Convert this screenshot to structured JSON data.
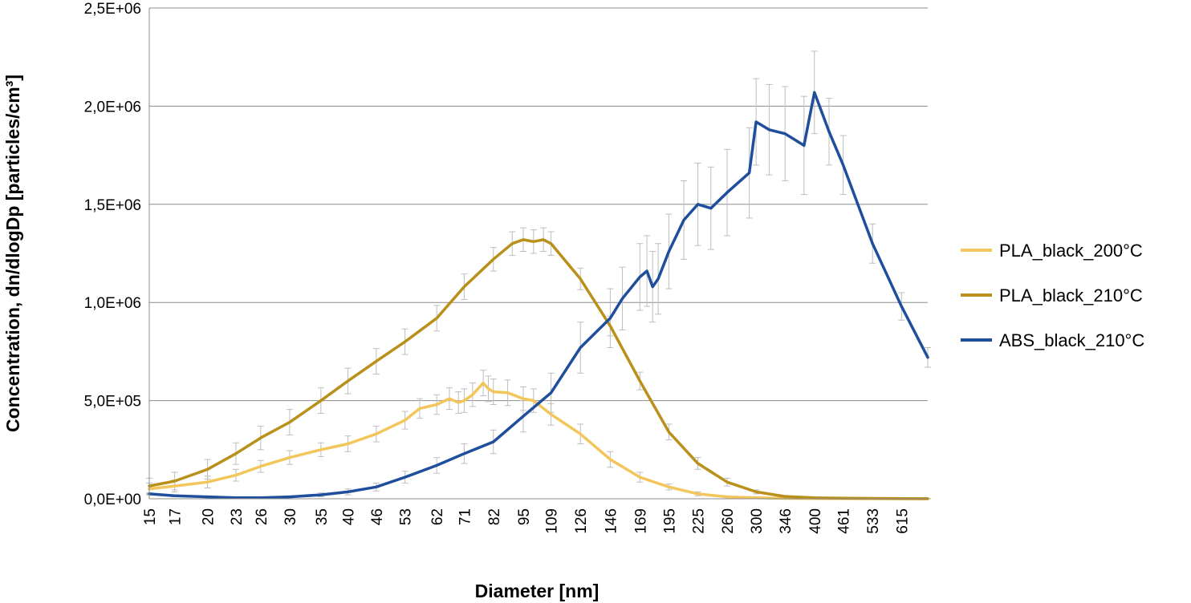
{
  "chart_data": {
    "type": "line",
    "title": "",
    "xlabel": "Diameter [nm]",
    "ylabel": "Concentration, dn/dlogDp [particles/cm³]",
    "ylim": [
      0,
      2500000
    ],
    "yticks": [
      0,
      500000,
      1000000,
      1500000,
      2000000,
      2500000
    ],
    "ytick_labels": [
      "0,0E+00",
      "5,0E+05",
      "1,0E+06",
      "1,5E+06",
      "2,0E+06",
      "2,5E+06"
    ],
    "xlim_log": [
      15,
      700
    ],
    "xticks": [
      15,
      17,
      20,
      23,
      26,
      30,
      35,
      40,
      46,
      53,
      62,
      71,
      82,
      95,
      109,
      126,
      146,
      169,
      195,
      225,
      260,
      300,
      346,
      400,
      461,
      533,
      615
    ],
    "xtick_labels": [
      "15",
      "17",
      "20",
      "23",
      "26",
      "30",
      "35",
      "40",
      "46",
      "53",
      "62",
      "71",
      "82",
      "95",
      "109",
      "126",
      "146",
      "169",
      "195",
      "225",
      "260",
      "300",
      "346",
      "400",
      "461",
      "533",
      "615"
    ],
    "grid": true,
    "legend_position": "right",
    "error_bars": true,
    "series": [
      {
        "name": "PLA_black_200°C",
        "color": "#F2C65A",
        "x": [
          15,
          17,
          20,
          23,
          26,
          30,
          35,
          40,
          46,
          53,
          57,
          62,
          66,
          69,
          71,
          74,
          78,
          80,
          82,
          88,
          95,
          100,
          109,
          126,
          146,
          169,
          195,
          225,
          260,
          300,
          346,
          400,
          461,
          533,
          615,
          700
        ],
        "y": [
          50000,
          65000,
          85000,
          120000,
          165000,
          210000,
          250000,
          280000,
          330000,
          400000,
          460000,
          480000,
          510000,
          490000,
          500000,
          530000,
          590000,
          560000,
          545000,
          540000,
          510000,
          500000,
          430000,
          330000,
          200000,
          110000,
          60000,
          25000,
          10000,
          5000,
          2000,
          1000,
          500,
          300,
          200,
          100
        ],
        "err": [
          30000,
          30000,
          30000,
          30000,
          30000,
          35000,
          35000,
          40000,
          40000,
          45000,
          50000,
          50000,
          55000,
          55000,
          60000,
          60000,
          65000,
          65000,
          65000,
          65000,
          60000,
          60000,
          55000,
          50000,
          40000,
          25000,
          15000,
          10000,
          5000,
          3000,
          2000,
          1000,
          500,
          300,
          200,
          100
        ]
      },
      {
        "name": "PLA_black_210°C",
        "color": "#B8901A",
        "x": [
          15,
          17,
          20,
          23,
          26,
          30,
          35,
          40,
          46,
          53,
          62,
          71,
          82,
          90,
          95,
          100,
          105,
          109,
          126,
          146,
          169,
          195,
          225,
          260,
          300,
          346,
          400,
          461,
          533,
          615,
          700
        ],
        "y": [
          65000,
          90000,
          150000,
          230000,
          310000,
          390000,
          500000,
          600000,
          700000,
          800000,
          920000,
          1080000,
          1220000,
          1300000,
          1320000,
          1310000,
          1320000,
          1300000,
          1120000,
          880000,
          600000,
          340000,
          180000,
          85000,
          35000,
          12000,
          5000,
          3000,
          2000,
          1000,
          500
        ],
        "err": [
          40000,
          45000,
          50000,
          55000,
          60000,
          65000,
          65000,
          65000,
          65000,
          65000,
          65000,
          65000,
          60000,
          60000,
          60000,
          60000,
          60000,
          60000,
          55000,
          50000,
          45000,
          40000,
          30000,
          20000,
          10000,
          5000,
          3000,
          2000,
          1000,
          500,
          300
        ]
      },
      {
        "name": "ABS_black_210°C",
        "color": "#1F4E9C",
        "x": [
          15,
          17,
          20,
          23,
          26,
          30,
          35,
          40,
          46,
          53,
          62,
          71,
          82,
          95,
          109,
          126,
          146,
          155,
          169,
          175,
          180,
          185,
          195,
          210,
          225,
          240,
          260,
          290,
          300,
          320,
          346,
          380,
          400,
          430,
          461,
          533,
          615,
          700
        ],
        "y": [
          25000,
          15000,
          10000,
          5000,
          5000,
          10000,
          20000,
          35000,
          60000,
          110000,
          170000,
          230000,
          290000,
          420000,
          540000,
          770000,
          920000,
          1020000,
          1130000,
          1160000,
          1080000,
          1120000,
          1260000,
          1420000,
          1500000,
          1480000,
          1560000,
          1660000,
          1920000,
          1880000,
          1860000,
          1800000,
          2070000,
          1870000,
          1700000,
          1300000,
          980000,
          720000
        ],
        "err": [
          5000,
          5000,
          5000,
          5000,
          5000,
          5000,
          10000,
          15000,
          20000,
          30000,
          40000,
          50000,
          60000,
          80000,
          100000,
          130000,
          150000,
          160000,
          170000,
          180000,
          180000,
          180000,
          190000,
          200000,
          210000,
          210000,
          220000,
          230000,
          220000,
          230000,
          240000,
          250000,
          210000,
          170000,
          150000,
          100000,
          70000,
          50000
        ]
      }
    ]
  }
}
